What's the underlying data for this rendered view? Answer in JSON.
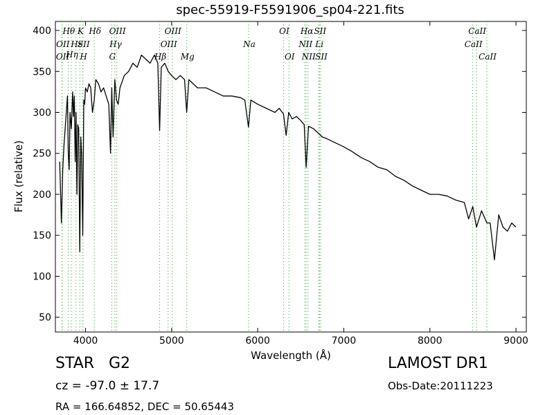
{
  "chart_data": {
    "type": "line",
    "title": "spec-55919-F5591906_sp04-221.fits",
    "xlabel": "Wavelength (Å)",
    "ylabel": "Flux (relative)",
    "xlim": [
      3650,
      9120
    ],
    "ylim": [
      32,
      411
    ],
    "xticks": [
      4000,
      5000,
      6000,
      7000,
      8000,
      9000
    ],
    "yticks": [
      50,
      100,
      150,
      200,
      250,
      300,
      350,
      400
    ],
    "grid": false,
    "line_color": "#000000",
    "marker_color": "#5fb85f",
    "series": [
      {
        "x": [
          3700,
          3720,
          3735,
          3750,
          3770,
          3790,
          3800,
          3810,
          3820,
          3835,
          3850,
          3860,
          3870,
          3880,
          3890,
          3900,
          3910,
          3920,
          3933,
          3945,
          3955,
          3968,
          3980,
          3990,
          4000,
          4020,
          4040,
          4060,
          4080,
          4101,
          4120,
          4150,
          4180,
          4210,
          4240,
          4270,
          4290,
          4305,
          4320,
          4340,
          4360,
          4380,
          4400,
          4450,
          4500,
          4550,
          4600,
          4650,
          4700,
          4750,
          4800,
          4840,
          4861,
          4880,
          4920,
          4960,
          5000,
          5050,
          5100,
          5150,
          5175,
          5200,
          5250,
          5300,
          5400,
          5500,
          5600,
          5700,
          5800,
          5850,
          5893,
          5920,
          6000,
          6100,
          6200,
          6250,
          6300,
          6330,
          6360,
          6400,
          6450,
          6500,
          6540,
          6563,
          6590,
          6650,
          6700,
          6750,
          6800,
          6900,
          7000,
          7100,
          7200,
          7300,
          7400,
          7500,
          7600,
          7700,
          7800,
          7900,
          8000,
          8100,
          8200,
          8300,
          8400,
          8450,
          8498,
          8542,
          8600,
          8662,
          8700,
          8750,
          8800,
          8850,
          8900,
          8950,
          9000
        ],
        "y": [
          240,
          165,
          230,
          260,
          290,
          320,
          250,
          230,
          300,
          280,
          325,
          295,
          320,
          240,
          300,
          200,
          285,
          280,
          130,
          270,
          250,
          150,
          315,
          310,
          330,
          325,
          335,
          330,
          300,
          315,
          340,
          335,
          325,
          330,
          320,
          310,
          250,
          330,
          270,
          340,
          315,
          310,
          330,
          345,
          350,
          360,
          355,
          370,
          365,
          360,
          370,
          360,
          278,
          355,
          360,
          350,
          345,
          340,
          345,
          340,
          300,
          340,
          335,
          330,
          330,
          325,
          320,
          320,
          318,
          315,
          282,
          315,
          310,
          305,
          300,
          305,
          298,
          272,
          300,
          292,
          295,
          290,
          285,
          233,
          283,
          280,
          275,
          270,
          268,
          263,
          258,
          252,
          245,
          240,
          233,
          230,
          222,
          217,
          210,
          205,
          200,
          200,
          198,
          193,
          190,
          170,
          185,
          160,
          180,
          165,
          165,
          120,
          175,
          160,
          155,
          165,
          160
        ]
      }
    ],
    "lines": [
      {
        "label": "OII",
        "x": 3727,
        "row": 3
      },
      {
        "label": "OII",
        "x": 3729,
        "row": 2
      },
      {
        "label": "Hθ",
        "x": 3798,
        "row": 1
      },
      {
        "label": "Hη",
        "x": 3835,
        "row": 2.5
      },
      {
        "label": "Hε",
        "x": 3889,
        "row": 2
      },
      {
        "label": "SII",
        "x": 3970,
        "row": 2
      },
      {
        "label": "K",
        "x": 3934,
        "row": 1
      },
      {
        "label": "H",
        "x": 3969,
        "row": 3
      },
      {
        "label": "Hδ",
        "x": 4102,
        "row": 1
      },
      {
        "label": "G",
        "x": 4304,
        "row": 3
      },
      {
        "label": "Hγ",
        "x": 4341,
        "row": 2
      },
      {
        "label": "OIII",
        "x": 4363,
        "row": 1
      },
      {
        "label": "Hβ",
        "x": 4861,
        "row": 3
      },
      {
        "label": "OIII",
        "x": 4959,
        "row": 2
      },
      {
        "label": "OIII",
        "x": 5007,
        "row": 1
      },
      {
        "label": "Mg",
        "x": 5176,
        "row": 3
      },
      {
        "label": "Na",
        "x": 5894,
        "row": 2
      },
      {
        "label": "OI",
        "x": 6300,
        "row": 1
      },
      {
        "label": "OI",
        "x": 6363,
        "row": 3
      },
      {
        "label": "NII",
        "x": 6548,
        "row": 2
      },
      {
        "label": "Hα",
        "x": 6563,
        "row": 1
      },
      {
        "label": "NII",
        "x": 6584,
        "row": 3
      },
      {
        "label": "SII",
        "x": 6717,
        "row": 1
      },
      {
        "label": "Li",
        "x": 6708,
        "row": 2
      },
      {
        "label": "SII",
        "x": 6731,
        "row": 3
      },
      {
        "label": "CaII",
        "x": 8498,
        "row": 2
      },
      {
        "label": "CaII",
        "x": 8542,
        "row": 1
      },
      {
        "label": "CaII",
        "x": 8662,
        "row": 3
      }
    ]
  },
  "info": {
    "class_label": "STAR",
    "subclass": "G2",
    "survey": "LAMOST DR1",
    "cz": "cz = -97.0 ± 17.7",
    "obs_date": "Obs-Date:20111223",
    "coords": "RA = 166.64852, DEC = 50.65443"
  }
}
